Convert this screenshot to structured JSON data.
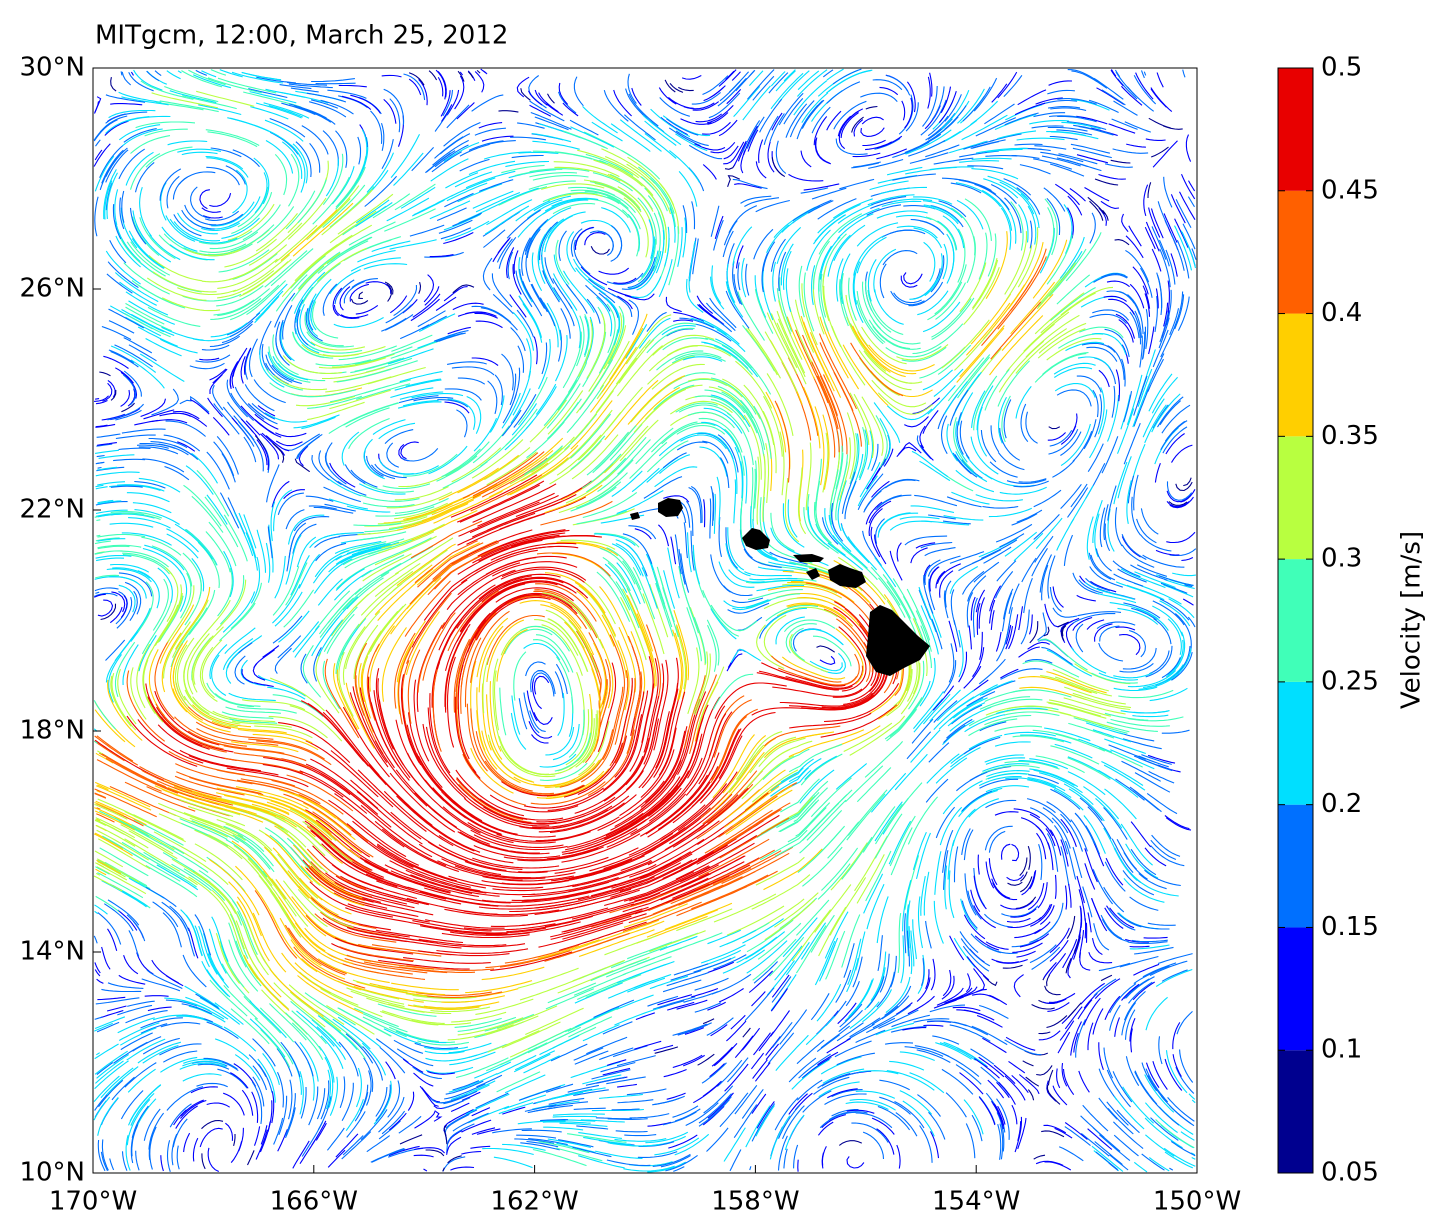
{
  "chart_data": {
    "type": "streamline-map",
    "title": "MITgcm, 12:00, March 25, 2012",
    "xlim": [
      -170,
      -150
    ],
    "ylim": [
      10,
      30
    ],
    "xticks": [
      {
        "value": -170,
        "label": "170°W"
      },
      {
        "value": -166,
        "label": "166°W"
      },
      {
        "value": -162,
        "label": "162°W"
      },
      {
        "value": -158,
        "label": "158°W"
      },
      {
        "value": -154,
        "label": "154°W"
      },
      {
        "value": -150,
        "label": "150°W"
      }
    ],
    "yticks": [
      {
        "value": 10,
        "label": "10°N"
      },
      {
        "value": 14,
        "label": "14°N"
      },
      {
        "value": 18,
        "label": "18°N"
      },
      {
        "value": 22,
        "label": "22°N"
      },
      {
        "value": 26,
        "label": "26°N"
      },
      {
        "value": 30,
        "label": "30°N"
      }
    ],
    "colorbar": {
      "label": "Velocity [m/s]",
      "lim": [
        0.05,
        0.5
      ],
      "ticks": [
        0.05,
        0.1,
        0.15,
        0.2,
        0.25,
        0.3,
        0.35,
        0.4,
        0.45,
        0.5
      ],
      "colors": [
        "#00008f",
        "#0000ff",
        "#0070ff",
        "#00dfff",
        "#40ffb8",
        "#b8ff40",
        "#ffcf00",
        "#ff6000",
        "#e80000"
      ]
    }
  }
}
